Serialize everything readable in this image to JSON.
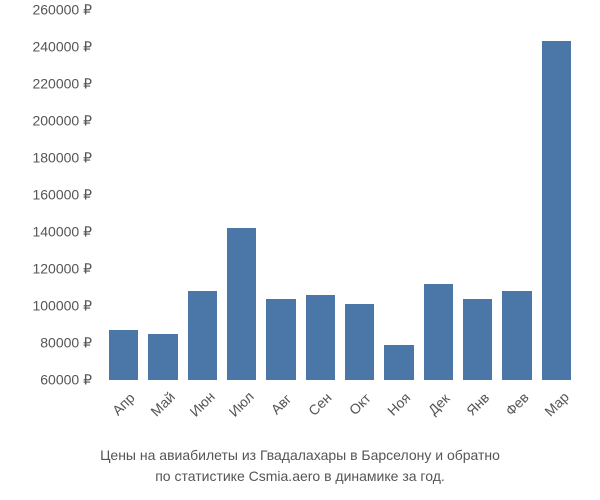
{
  "chart": {
    "type": "bar",
    "categories": [
      "Апр",
      "Май",
      "Июн",
      "Июл",
      "Авг",
      "Сен",
      "Окт",
      "Ноя",
      "Дек",
      "Янв",
      "Фев",
      "Мар"
    ],
    "values": [
      87000,
      85000,
      108000,
      142000,
      104000,
      106000,
      101000,
      79000,
      112000,
      104000,
      108000,
      243000
    ],
    "bar_color": "#4a76a8",
    "ylim": [
      60000,
      260000
    ],
    "yticks": [
      60000,
      80000,
      100000,
      120000,
      140000,
      160000,
      180000,
      200000,
      220000,
      240000,
      260000
    ],
    "ytick_labels": [
      "60000 ₽",
      "80000 ₽",
      "100000 ₽",
      "120000 ₽",
      "140000 ₽",
      "160000 ₽",
      "180000 ₽",
      "200000 ₽",
      "220000 ₽",
      "240000 ₽",
      "260000 ₽"
    ],
    "background_color": "#ffffff",
    "text_color": "#555555",
    "tick_fontsize": 14,
    "caption_fontsize": 14,
    "x_label_rotation": -45
  },
  "caption": {
    "line1": "Цены на авиабилеты из Гвадалахары в Барселону и обратно",
    "line2": "по статистике Csmia.aero в динамике за год."
  }
}
